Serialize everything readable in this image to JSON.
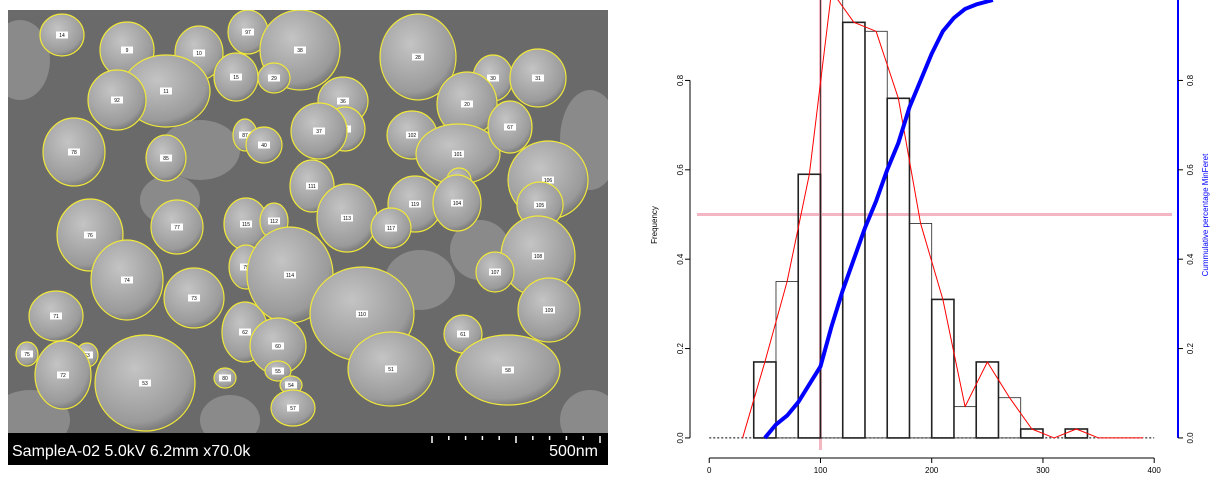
{
  "image": {
    "caption": "SampleA-02 5.0kV 6.2mm x70.0k",
    "scale_label": "500nm",
    "particle_labels": [
      "14",
      "9",
      "10",
      "97",
      "38",
      "15",
      "29",
      "11",
      "92",
      "28",
      "30",
      "31",
      "20",
      "36",
      "47",
      "37",
      "87",
      "40",
      "78",
      "85",
      "102",
      "101",
      "67",
      "111",
      "106",
      "118",
      "113",
      "119",
      "104",
      "105",
      "117",
      "76",
      "77",
      "115",
      "112",
      "108",
      "107",
      "74",
      "79",
      "114",
      "73",
      "110",
      "109",
      "71",
      "62",
      "60",
      "61",
      "75",
      "63",
      "72",
      "53",
      "51",
      "58",
      "80",
      "55",
      "54",
      "57"
    ]
  },
  "chart_data": {
    "type": "histogram",
    "bins": [
      40,
      60,
      80,
      100,
      120,
      140,
      160,
      180,
      200,
      220,
      240,
      260,
      280,
      300,
      320,
      340
    ],
    "values": [
      0.17,
      0.35,
      0.59,
      1.0,
      0.93,
      0.91,
      0.76,
      0.48,
      0.31,
      0.07,
      0.17,
      0.09,
      0.02,
      0.0,
      0.02
    ],
    "edge_color": "#222222",
    "ylabel": "Frequency",
    "y2label": "Cummulative percentage MinFeret",
    "xlim": [
      -11,
      416
    ],
    "ylim": [
      -0.027,
      0.98
    ],
    "y2lim": [
      -0.027,
      0.98
    ],
    "xticks": [
      0,
      100,
      200,
      300,
      400
    ],
    "yticks": [
      {
        "value": 0,
        "label": "0.0"
      },
      0.2,
      0.4,
      0.6,
      0.8
    ],
    "y2ticks": [
      {
        "value": 0,
        "label": "0.0"
      },
      0.2,
      0.4,
      0.6,
      0.8
    ],
    "series": [
      {
        "color": "#ff0000",
        "x": [
          30,
          50,
          70,
          90,
          110,
          130,
          150,
          170,
          190,
          210,
          230,
          250,
          270,
          290,
          310,
          330,
          350,
          370,
          390
        ],
        "values": [
          0,
          0.17,
          0.35,
          0.59,
          1.0,
          0.93,
          0.91,
          0.76,
          0.48,
          0.31,
          0.07,
          0.17,
          0.09,
          0.02,
          0,
          0.02,
          0,
          0,
          0
        ]
      },
      {
        "color": "#0000ff",
        "axis": "y2",
        "x": [
          50,
          60,
          70,
          80,
          90,
          100,
          110,
          120,
          130,
          140,
          150,
          160,
          170,
          180,
          190,
          200,
          210,
          220,
          230,
          240,
          255
        ],
        "values": [
          0,
          0.03,
          0.05,
          0.08,
          0.12,
          0.16,
          0.25,
          0.33,
          0.4,
          0.47,
          0.53,
          0.6,
          0.66,
          0.74,
          0.8,
          0.86,
          0.91,
          0.94,
          0.96,
          0.97,
          0.98
        ]
      }
    ],
    "reference_lines": {
      "x": 100,
      "y2": 0.5,
      "color": "#f4b6c2"
    }
  }
}
